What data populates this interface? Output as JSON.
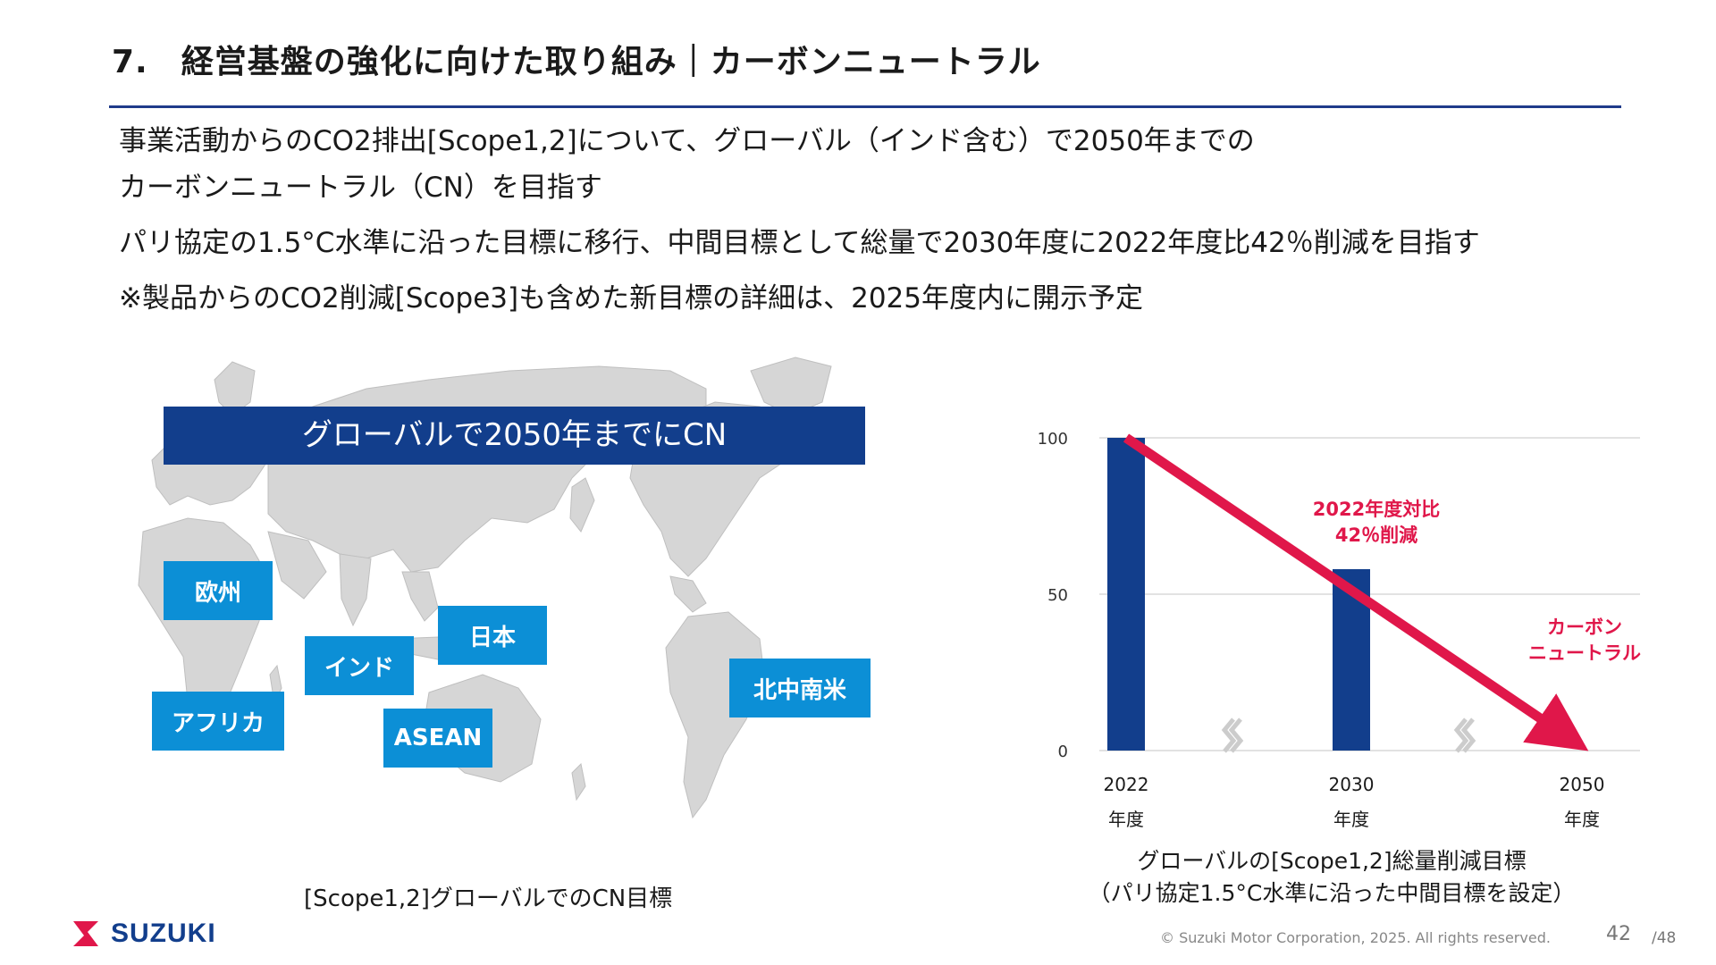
{
  "header": {
    "title": "7.　経営基盤の強化に向けた取り組み｜カーボンニュートラル"
  },
  "bullets": [
    "事業活動からのCO2排出[Scope1,2]について、グローバル（インド含む）で2050年までの",
    "カーボンニュートラル（CN）を目指す",
    "パリ協定の1.5°C水準に沿った目標に移行、中間目標として総量で2030年度に2022年度比42％削減を目指す",
    "※製品からのCO2削減[Scope3]も含めた新目標の詳細は、2025年度内に開示予定"
  ],
  "map": {
    "banner": "グローバルで2050年までにCN",
    "regions": {
      "europe": "欧州",
      "india": "インド",
      "japan": "日本",
      "africa": "アフリカ",
      "asean": "ASEAN",
      "americas": "北中南米"
    },
    "caption": "[Scope1,2]グローバルでのCN目標"
  },
  "chart_data": {
    "type": "bar",
    "categories": [
      "2022",
      "2030",
      "2050"
    ],
    "category_sublabels": [
      "年度",
      "年度",
      "年度"
    ],
    "values": [
      100,
      58,
      0
    ],
    "ylim": [
      0,
      100
    ],
    "yticks": [
      0,
      50,
      100
    ],
    "grid": true,
    "bar_color": "#123e8c",
    "trend_color": "#e0174a",
    "annotations": {
      "reduction": [
        "2022年度対比",
        "42％削減"
      ],
      "neutral": [
        "カーボン",
        "ニュートラル"
      ]
    },
    "caption": [
      "グローバルの[Scope1,2]総量削減目標",
      "（パリ協定1.5°C水準に沿った中間目標を設定）"
    ]
  },
  "footer": {
    "logo_text": "SUZUKI",
    "copyright": "© Suzuki Motor Corporation, 2025. All rights reserved.",
    "page": "42",
    "total": "/48"
  }
}
